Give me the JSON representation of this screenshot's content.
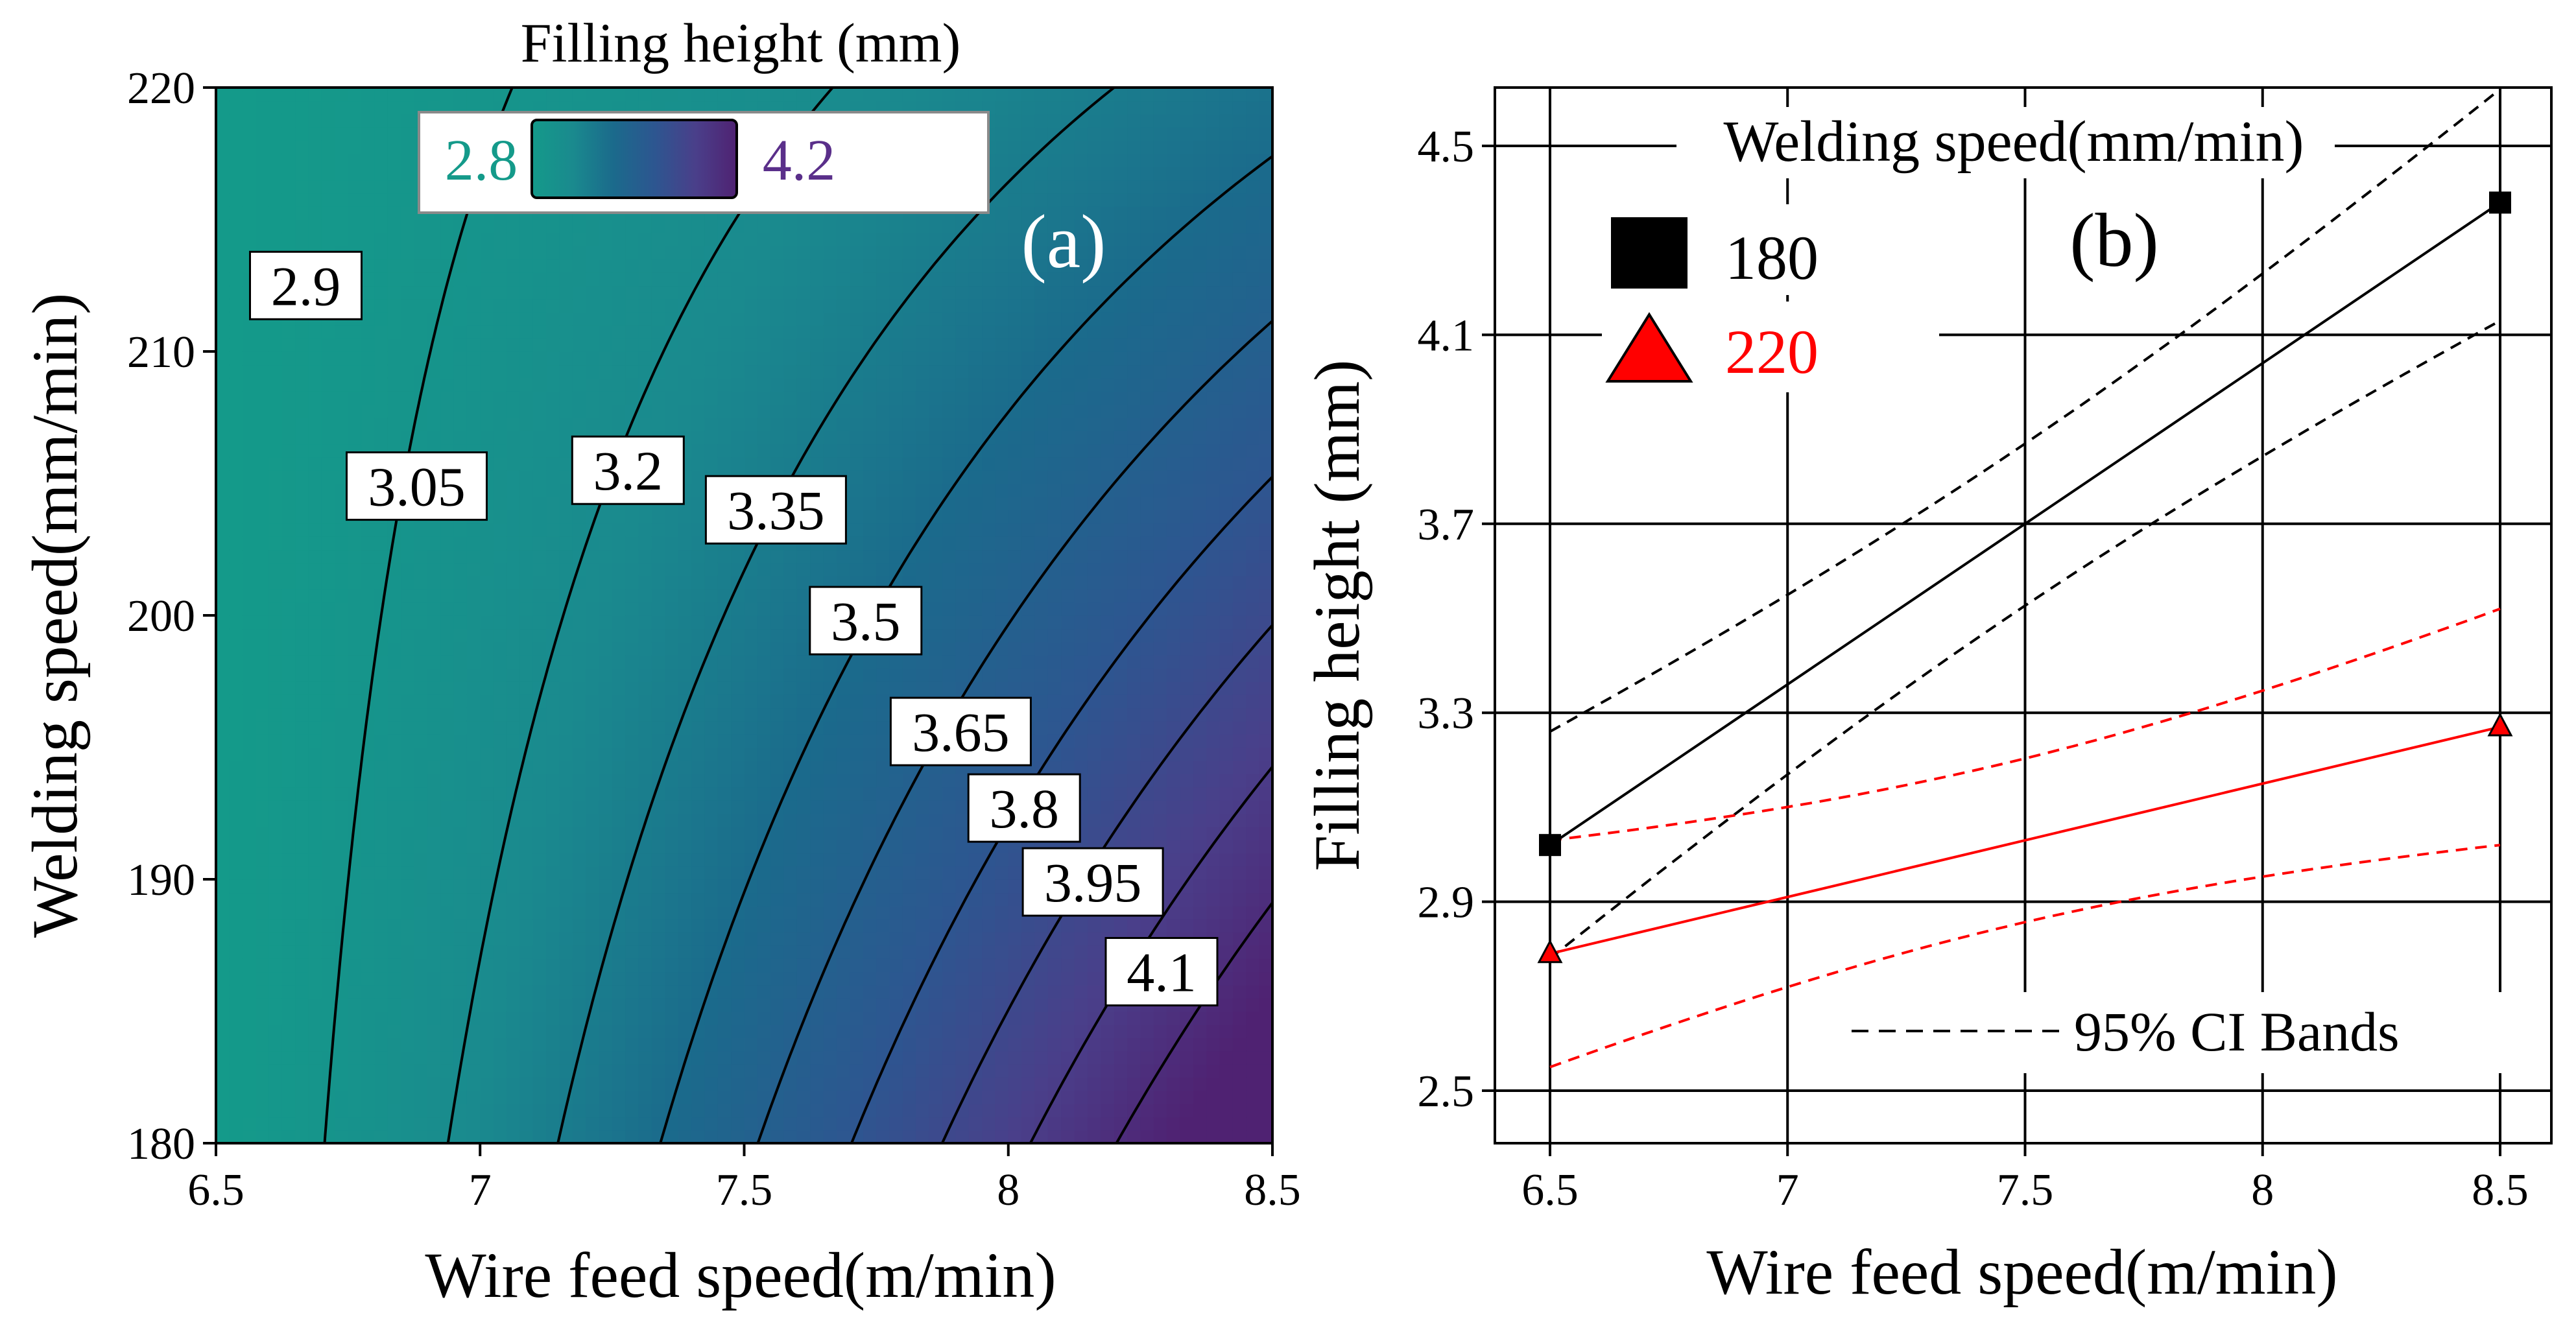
{
  "chart_data": [
    {
      "panel": "(a)",
      "type": "heatmap",
      "title": "Filling height (mm)",
      "xlabel": "Wire feed speed(m/min)",
      "ylabel": "Welding speed(mm/min)",
      "xlim": [
        6.5,
        8.5
      ],
      "ylim": [
        180,
        220
      ],
      "x_ticks": [
        6.5,
        7,
        7.5,
        8,
        8.5
      ],
      "x_tick_labels": [
        "6.5",
        "7",
        "7.5",
        "8",
        "8.5"
      ],
      "y_ticks": [
        180,
        190,
        200,
        210,
        220
      ],
      "y_tick_labels": [
        "180",
        "190",
        "200",
        "210",
        "220"
      ],
      "colorbar": {
        "min": 2.8,
        "max": 4.2,
        "min_label": "2.8",
        "max_label": "4.2",
        "colors": [
          "#149a8a",
          "#1a8a8e",
          "#1b6a8c",
          "#2d5690",
          "#4a3f8a",
          "#4f2272"
        ]
      },
      "contour_levels": [
        2.9,
        3.05,
        3.2,
        3.35,
        3.5,
        3.65,
        3.8,
        3.95,
        4.1
      ],
      "contour_labels": [
        {
          "text": "2.9",
          "x": 6.67,
          "y": 212.5
        },
        {
          "text": "3.05",
          "x": 6.88,
          "y": 204.9
        },
        {
          "text": "3.2",
          "x": 7.28,
          "y": 205.5
        },
        {
          "text": "3.35",
          "x": 7.56,
          "y": 204.0
        },
        {
          "text": "3.5",
          "x": 7.73,
          "y": 199.8
        },
        {
          "text": "3.65",
          "x": 7.91,
          "y": 195.6
        },
        {
          "text": "3.8",
          "x": 8.03,
          "y": 192.7
        },
        {
          "text": "3.95",
          "x": 8.16,
          "y": 189.9
        },
        {
          "text": "4.1",
          "x": 8.29,
          "y": 186.5
        }
      ],
      "annotation": "(a)"
    },
    {
      "panel": "(b)",
      "type": "line",
      "xlabel": "Wire feed speed(m/min)",
      "ylabel": "Filling height (mm)",
      "xlim": [
        6.5,
        8.5
      ],
      "ylim": [
        2.5,
        4.5
      ],
      "x_ticks": [
        6.5,
        7,
        7.5,
        8,
        8.5
      ],
      "x_tick_labels": [
        "6.5",
        "7",
        "7.5",
        "8",
        "8.5"
      ],
      "y_ticks": [
        2.5,
        2.9,
        3.3,
        3.7,
        4.1,
        4.5
      ],
      "y_tick_labels": [
        "2.5",
        "2.9",
        "3.3",
        "3.7",
        "4.1",
        "4.5"
      ],
      "grid": true,
      "legend_title": "Welding speed(mm/min)",
      "ci_label": "95% CI Bands",
      "annotation": "(b)",
      "x": [
        6.5,
        8.5
      ],
      "series": [
        {
          "name": "180",
          "color": "#000000",
          "marker": "square",
          "values": [
            3.02,
            4.38
          ],
          "ci_lower": [
            2.78,
            4.13
          ],
          "ci_upper": [
            3.26,
            4.62
          ]
        },
        {
          "name": "220",
          "color": "#ff0000",
          "marker": "triangle",
          "values": [
            2.79,
            3.27
          ],
          "ci_lower": [
            2.55,
            3.02
          ],
          "ci_upper": [
            3.03,
            3.52
          ]
        }
      ]
    }
  ]
}
